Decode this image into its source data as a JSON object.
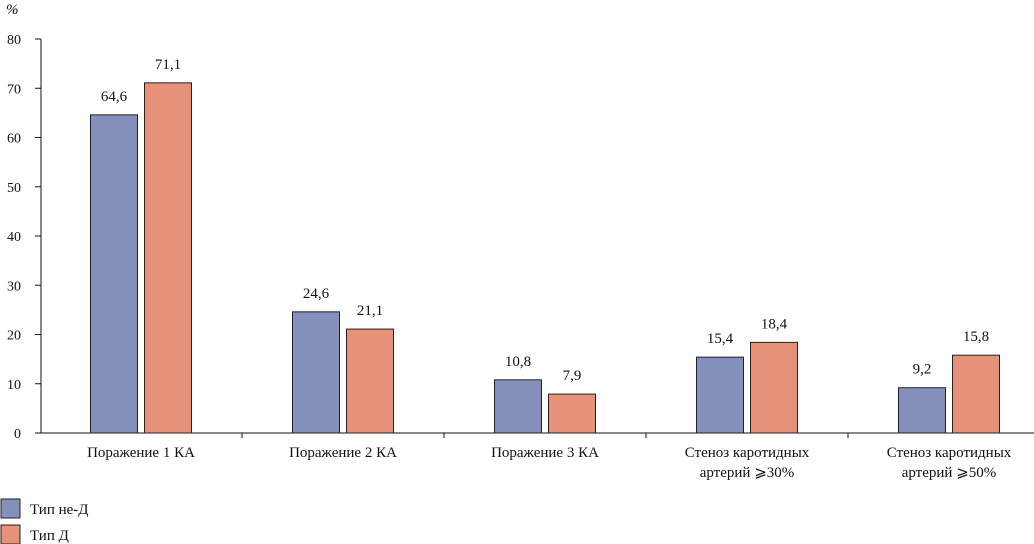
{
  "chart_data": {
    "type": "bar",
    "ylabel": "%",
    "ylim": [
      0,
      80
    ],
    "yticks": [
      0,
      10,
      20,
      30,
      40,
      50,
      60,
      70,
      80
    ],
    "grid": false,
    "legend_position": "bottom-left",
    "categories": [
      [
        "Поражение 1 КА"
      ],
      [
        "Поражение 2 КА"
      ],
      [
        "Поражение 3 КА"
      ],
      [
        "Стеноз каротидных",
        "артерий ⩾30%"
      ],
      [
        "Стеноз каротидных",
        "артерий ⩾50%"
      ]
    ],
    "series": [
      {
        "name": "Тип не-Д",
        "color": "#8490bb",
        "values": [
          64.6,
          24.6,
          10.8,
          15.4,
          9.2
        ],
        "labels": [
          "64,6",
          "24,6",
          "10,8",
          "15,4",
          "9,2"
        ]
      },
      {
        "name": "Тип Д",
        "color": "#e6917a",
        "values": [
          71.1,
          21.1,
          7.9,
          18.4,
          15.8
        ],
        "labels": [
          "71,1",
          "21,1",
          "7,9",
          "18,4",
          "15,8"
        ]
      }
    ]
  }
}
